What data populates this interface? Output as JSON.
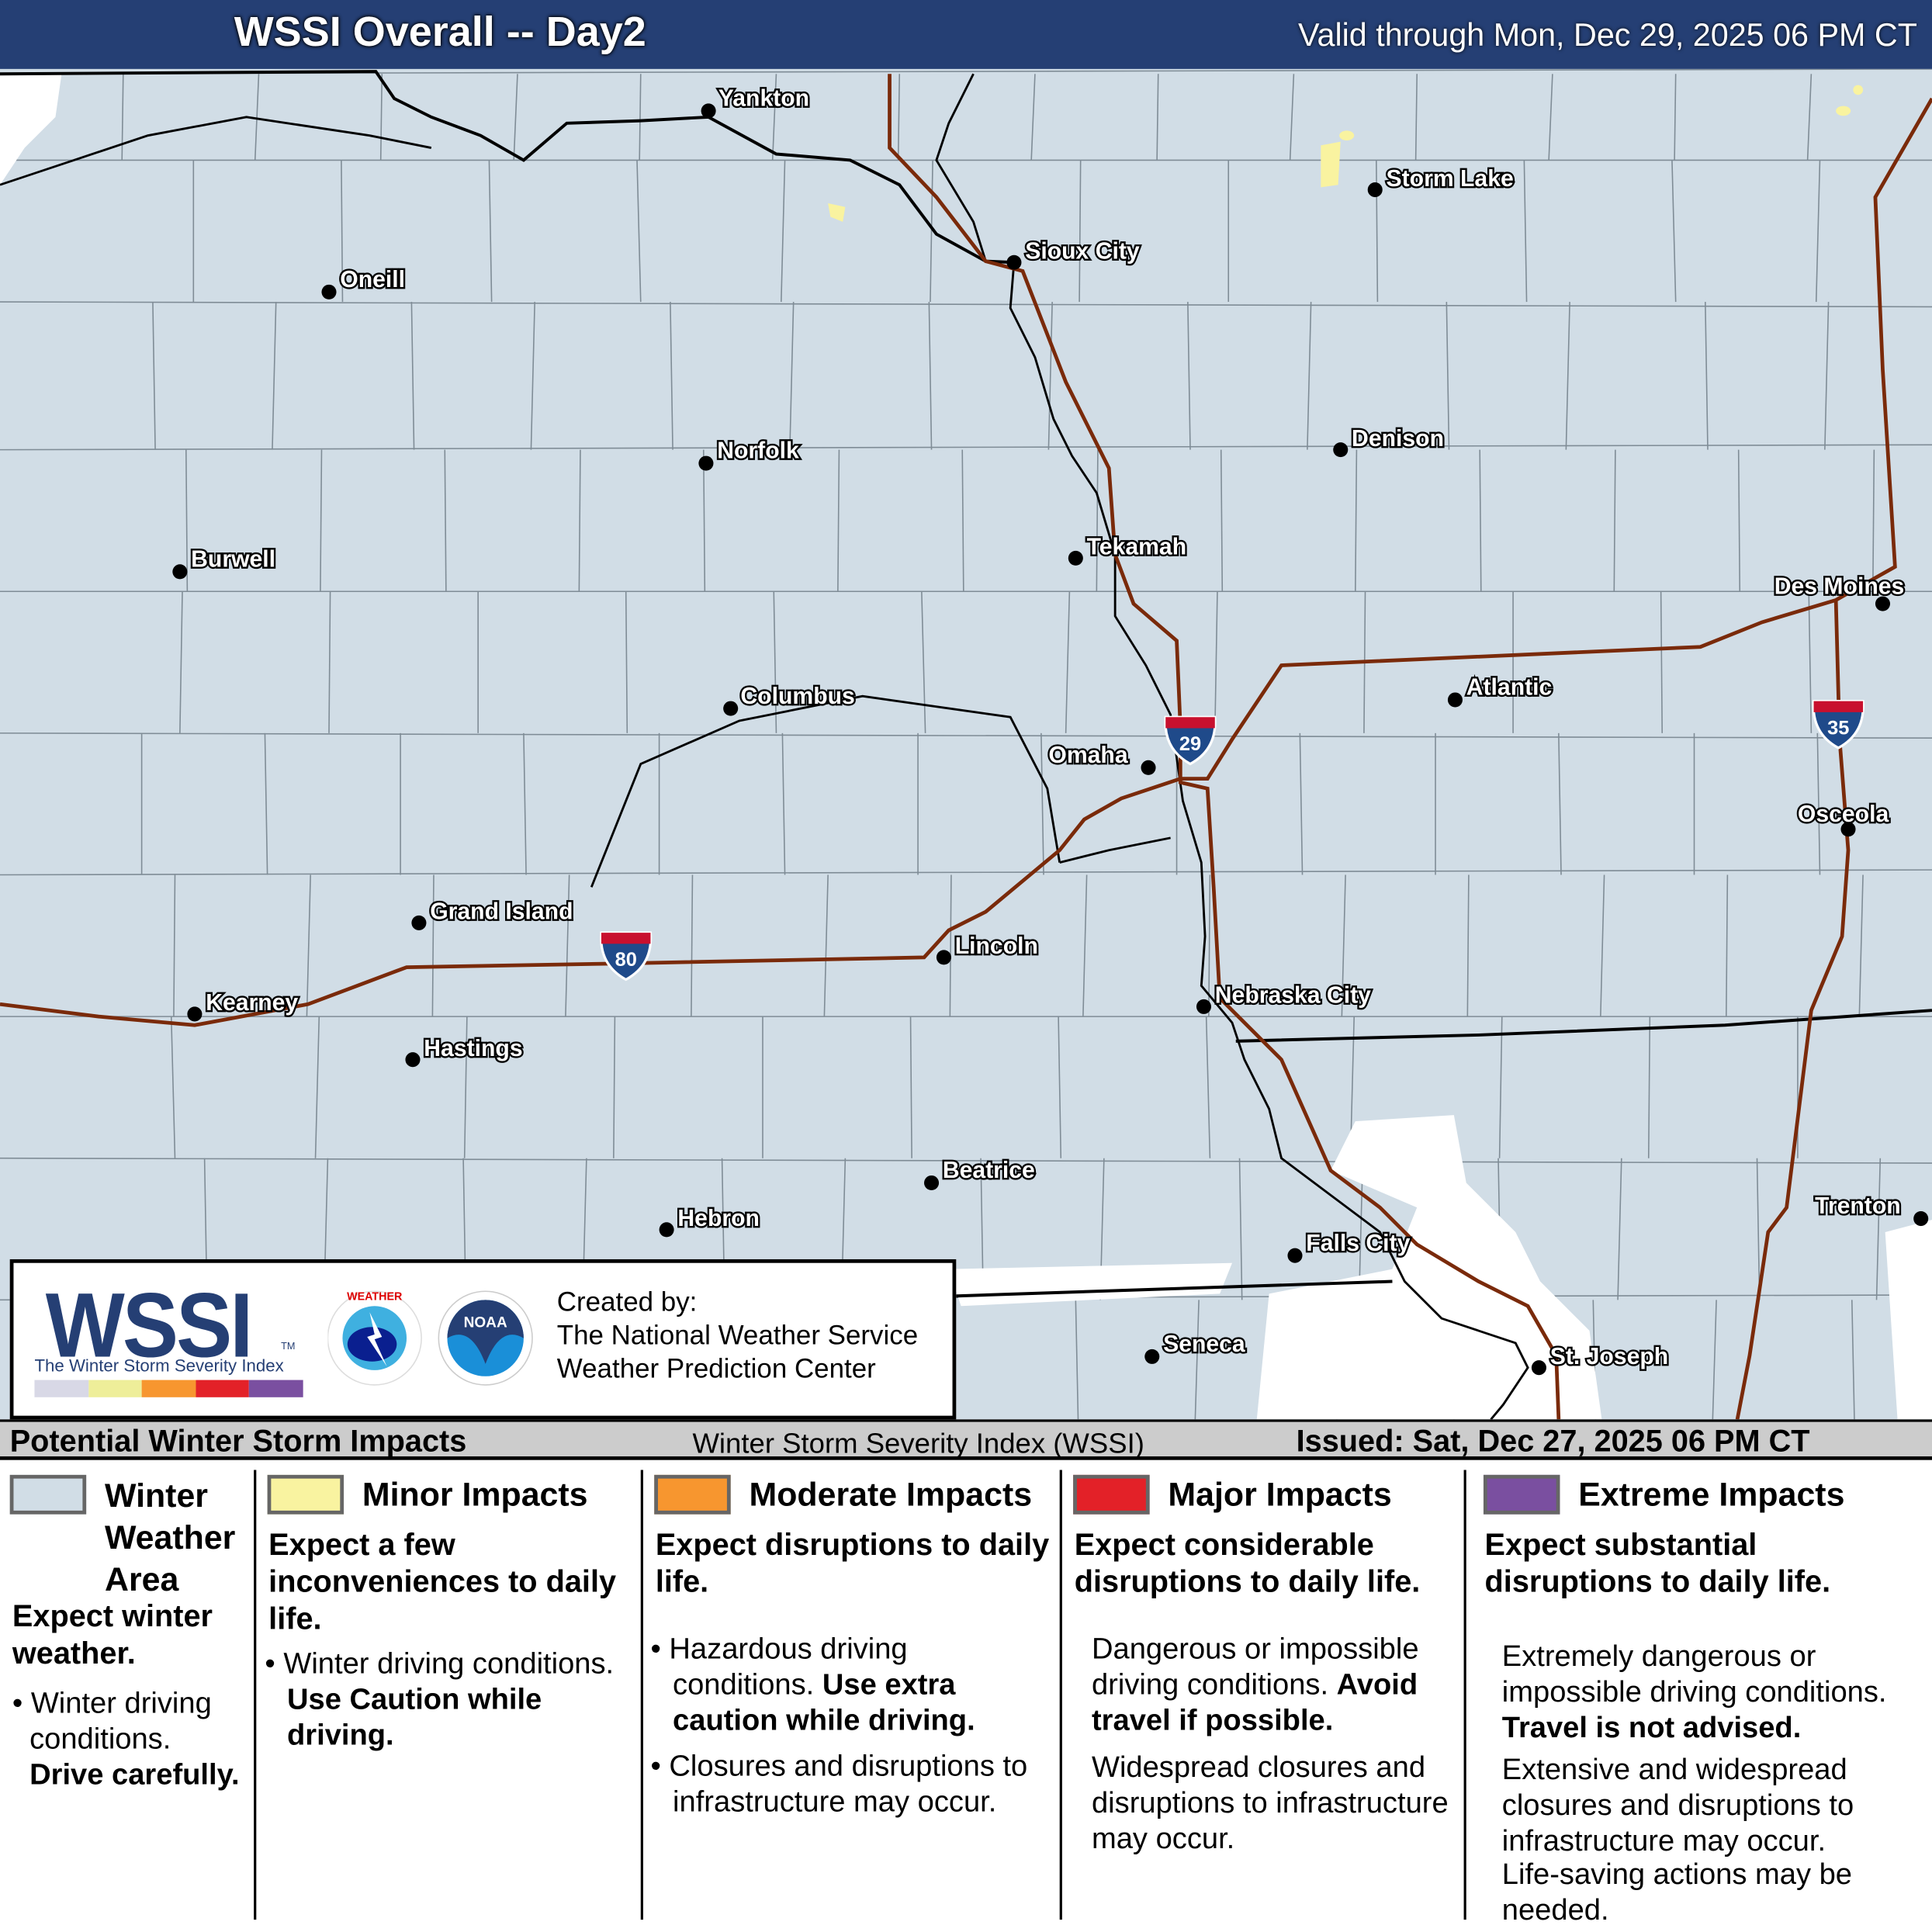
{
  "header": {
    "title": "WSSI Overall -- Day2",
    "valid": "Valid through Mon, Dec 29, 2025 06 PM CT"
  },
  "colors": {
    "winter_weather_area": "#d1dde6",
    "minor": "#f9f3a0",
    "moderate": "#f7962f",
    "major": "#e32128",
    "extreme": "#7a4fa0",
    "title_bar": "#253f74",
    "interstate": "#7a2a0a"
  },
  "cities": [
    {
      "name": "Yankton"
    },
    {
      "name": "Storm Lake"
    },
    {
      "name": "Sioux City"
    },
    {
      "name": "Oneill"
    },
    {
      "name": "Norfolk"
    },
    {
      "name": "Denison"
    },
    {
      "name": "Burwell"
    },
    {
      "name": "Tekamah"
    },
    {
      "name": "Des Moines"
    },
    {
      "name": "Columbus"
    },
    {
      "name": "Atlantic"
    },
    {
      "name": "Omaha"
    },
    {
      "name": "Osceola"
    },
    {
      "name": "Grand Island"
    },
    {
      "name": "Lincoln"
    },
    {
      "name": "Kearney"
    },
    {
      "name": "Nebraska City"
    },
    {
      "name": "Hastings"
    },
    {
      "name": "Beatrice"
    },
    {
      "name": "Trenton"
    },
    {
      "name": "Hebron"
    },
    {
      "name": "Falls City"
    },
    {
      "name": "Seneca"
    },
    {
      "name": "St. Joseph"
    }
  ],
  "interstates": [
    "80",
    "29",
    "35"
  ],
  "logo": {
    "wssi": "WSSI",
    "tm": "TM",
    "subtitle": "The Winter Storm Severity Index",
    "nws_seal": "NATIONAL WEATHER SERVICE",
    "noaa_seal": "NOAA",
    "created_by": "Created by:",
    "org1": "The National Weather Service",
    "org2": "Weather Prediction Center"
  },
  "legend_header": {
    "left": "Potential Winter Storm Impacts",
    "center": "Winter Storm Severity Index (WSSI)",
    "right": "Issued: Sat, Dec 27, 2025 06 PM CT"
  },
  "legend": [
    {
      "title": "Winter Weather Area",
      "summary": "Expect winter weather.",
      "bullet": "Winter driving conditions.",
      "bold": "Drive carefully."
    },
    {
      "title": "Minor Impacts",
      "summary": "Expect a few inconveniences to daily life.",
      "bullet": "Winter driving conditions.",
      "bold": "Use Caution while driving."
    },
    {
      "title": "Moderate Impacts",
      "summary": "Expect disruptions to daily life.",
      "bullet": "Hazardous driving conditions.",
      "bold": "Use extra caution while driving.",
      "bullet2": "Closures and disruptions to infrastructure may occur."
    },
    {
      "title": "Major Impacts",
      "summary": "Expect considerable disruptions to daily life.",
      "bullet": "Dangerous or impossible driving conditions.",
      "bold": "Avoid travel if possible.",
      "bullet2": "Widespread closures and disruptions to infrastructure may occur."
    },
    {
      "title": "Extreme Impacts",
      "summary": "Expect substantial disruptions to daily life.",
      "bullet": "Extremely dangerous or impossible driving conditions.",
      "bold": "Travel is not advised.",
      "bullet2": "Extensive and widespread closures and disruptions to infrastructure may occur.",
      "bullet3": "Life-saving actions may be needed."
    }
  ]
}
